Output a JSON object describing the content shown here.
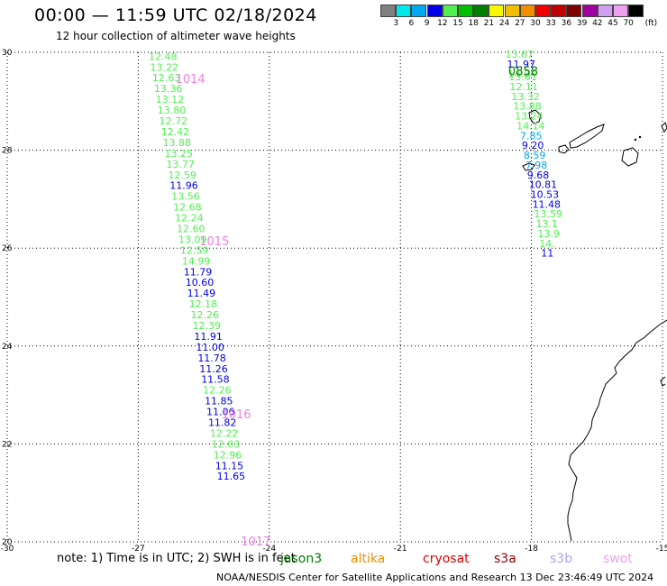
{
  "header": {
    "title": "00:00 — 11:59 UTC 02/18/2024",
    "subtitle": "12 hour collection of altimeter wave heights"
  },
  "colorbar": {
    "unit": "(ft)",
    "bins": [
      {
        "label": "3",
        "color": "#808080"
      },
      {
        "label": "6",
        "color": "#00e8e8"
      },
      {
        "label": "9",
        "color": "#00a8f0"
      },
      {
        "label": "12",
        "color": "#0000e8"
      },
      {
        "label": "15",
        "color": "#50f050"
      },
      {
        "label": "18",
        "color": "#00c000"
      },
      {
        "label": "21",
        "color": "#008000"
      },
      {
        "label": "24",
        "color": "#f8f800"
      },
      {
        "label": "27",
        "color": "#f0c000"
      },
      {
        "label": "30",
        "color": "#f09000"
      },
      {
        "label": "33",
        "color": "#f00000"
      },
      {
        "label": "36",
        "color": "#c00000"
      },
      {
        "label": "39",
        "color": "#800000"
      },
      {
        "label": "42",
        "color": "#a000a0"
      },
      {
        "label": "45",
        "color": "#d0a0f0"
      },
      {
        "label": "70",
        "color": "#f0a0f0"
      },
      {
        "label": "",
        "color": "#000000"
      }
    ]
  },
  "map": {
    "lon_range": [
      -30,
      -15
    ],
    "lat_range": [
      20,
      30
    ],
    "x_ticks": [
      -30,
      -27,
      -24,
      -21,
      -18,
      -15
    ],
    "y_ticks": [
      30,
      28,
      26,
      24,
      22,
      20
    ],
    "land_color": "#000000"
  },
  "track_west": [
    {
      "value": "12.48",
      "color": "#50f050",
      "lon": -26.76,
      "lat": 29.92
    },
    {
      "value": "13.22",
      "color": "#50f050",
      "lon": -26.73,
      "lat": 29.7
    },
    {
      "value": "12.63",
      "color": "#50f050",
      "lon": -26.68,
      "lat": 29.48
    },
    {
      "value": "13.36",
      "color": "#50f050",
      "lon": -26.64,
      "lat": 29.26
    },
    {
      "value": "13.12",
      "color": "#50f050",
      "lon": -26.6,
      "lat": 29.04
    },
    {
      "value": "13.80",
      "color": "#50f050",
      "lon": -26.56,
      "lat": 28.82
    },
    {
      "value": "12.72",
      "color": "#50f050",
      "lon": -26.52,
      "lat": 28.6
    },
    {
      "value": "12.42",
      "color": "#50f050",
      "lon": -26.48,
      "lat": 28.38
    },
    {
      "value": "13.88",
      "color": "#50f050",
      "lon": -26.44,
      "lat": 28.16
    },
    {
      "value": "13.25",
      "color": "#50f050",
      "lon": -26.4,
      "lat": 27.94
    },
    {
      "value": "13.77",
      "color": "#50f050",
      "lon": -26.36,
      "lat": 27.72
    },
    {
      "value": "12.59",
      "color": "#50f050",
      "lon": -26.32,
      "lat": 27.5
    },
    {
      "value": "11.96",
      "color": "#0000e8",
      "lon": -26.28,
      "lat": 27.28
    },
    {
      "value": "13.56",
      "color": "#50f050",
      "lon": -26.24,
      "lat": 27.06
    },
    {
      "value": "12.68",
      "color": "#50f050",
      "lon": -26.2,
      "lat": 26.84
    },
    {
      "value": "12.24",
      "color": "#50f050",
      "lon": -26.16,
      "lat": 26.62
    },
    {
      "value": "12.60",
      "color": "#50f050",
      "lon": -26.12,
      "lat": 26.4
    },
    {
      "value": "13.09",
      "color": "#50f050",
      "lon": -26.08,
      "lat": 26.18
    },
    {
      "value": "12.59",
      "color": "#50f050",
      "lon": -26.04,
      "lat": 25.96
    },
    {
      "value": "14.99",
      "color": "#50f050",
      "lon": -26.0,
      "lat": 25.74
    },
    {
      "value": "11.79",
      "color": "#0000e8",
      "lon": -25.96,
      "lat": 25.52
    },
    {
      "value": "10.60",
      "color": "#0000e8",
      "lon": -25.92,
      "lat": 25.3
    },
    {
      "value": "11.49",
      "color": "#0000e8",
      "lon": -25.88,
      "lat": 25.08
    },
    {
      "value": "12.18",
      "color": "#50f050",
      "lon": -25.84,
      "lat": 24.86
    },
    {
      "value": "12.26",
      "color": "#50f050",
      "lon": -25.8,
      "lat": 24.64
    },
    {
      "value": "12.39",
      "color": "#50f050",
      "lon": -25.76,
      "lat": 24.42
    },
    {
      "value": "11.91",
      "color": "#0000e8",
      "lon": -25.72,
      "lat": 24.2
    },
    {
      "value": "11.00",
      "color": "#0000e8",
      "lon": -25.68,
      "lat": 23.98
    },
    {
      "value": "11.78",
      "color": "#0000e8",
      "lon": -25.64,
      "lat": 23.76
    },
    {
      "value": "11.26",
      "color": "#0000e8",
      "lon": -25.6,
      "lat": 23.54
    },
    {
      "value": "11.58",
      "color": "#0000e8",
      "lon": -25.56,
      "lat": 23.32
    },
    {
      "value": "12.26",
      "color": "#50f050",
      "lon": -25.52,
      "lat": 23.1
    },
    {
      "value": "11.85",
      "color": "#0000e8",
      "lon": -25.48,
      "lat": 22.88
    },
    {
      "value": "11.06",
      "color": "#0000e8",
      "lon": -25.44,
      "lat": 22.66
    },
    {
      "value": "11.82",
      "color": "#0000e8",
      "lon": -25.4,
      "lat": 22.44
    },
    {
      "value": "12.22",
      "color": "#50f050",
      "lon": -25.36,
      "lat": 22.22
    },
    {
      "value": "12.03",
      "color": "#50f050",
      "lon": -25.32,
      "lat": 22.0
    },
    {
      "value": "12.96",
      "color": "#50f050",
      "lon": -25.28,
      "lat": 21.78
    },
    {
      "value": "11.15",
      "color": "#0000e8",
      "lon": -25.24,
      "lat": 21.56
    },
    {
      "value": "11.65",
      "color": "#0000e8",
      "lon": -25.2,
      "lat": 21.34
    }
  ],
  "track_east": [
    {
      "value": "13.67",
      "color": "#50f050",
      "lon": -18.6,
      "lat": 29.96
    },
    {
      "value": "11.97",
      "color": "#0000e8",
      "lon": -18.56,
      "lat": 29.76
    },
    {
      "value": "14.04",
      "color": "#50f050",
      "lon": -18.54,
      "lat": 29.56
    },
    {
      "value": "13.81",
      "color": "#50f050",
      "lon": -18.52,
      "lat": 29.5
    },
    {
      "value": "12.11",
      "color": "#50f050",
      "lon": -18.5,
      "lat": 29.3
    },
    {
      "value": "13.32",
      "color": "#50f050",
      "lon": -18.46,
      "lat": 29.1
    },
    {
      "value": "13.88",
      "color": "#50f050",
      "lon": -18.42,
      "lat": 28.9
    },
    {
      "value": "13.24",
      "color": "#50f050",
      "lon": -18.38,
      "lat": 28.7
    },
    {
      "value": "14.14",
      "color": "#50f050",
      "lon": -18.34,
      "lat": 28.5
    },
    {
      "value": "7.85",
      "color": "#00a8f0",
      "lon": -18.26,
      "lat": 28.3
    },
    {
      "value": "9.20",
      "color": "#0000e8",
      "lon": -18.22,
      "lat": 28.1
    },
    {
      "value": "8.59",
      "color": "#00a8f0",
      "lon": -18.18,
      "lat": 27.9
    },
    {
      "value": "7.98",
      "color": "#00a8f0",
      "lon": -18.14,
      "lat": 27.7
    },
    {
      "value": "9.68",
      "color": "#0000e8",
      "lon": -18.1,
      "lat": 27.5
    },
    {
      "value": "10.81",
      "color": "#0000e8",
      "lon": -18.06,
      "lat": 27.3
    },
    {
      "value": "10.53",
      "color": "#0000e8",
      "lon": -18.02,
      "lat": 27.1
    },
    {
      "value": "11.48",
      "color": "#0000e8",
      "lon": -17.98,
      "lat": 26.9
    },
    {
      "value": "13.59",
      "color": "#50f050",
      "lon": -17.94,
      "lat": 26.7
    },
    {
      "value": "13.1",
      "color": "#50f050",
      "lon": -17.9,
      "lat": 26.5
    },
    {
      "value": "13.9",
      "color": "#50f050",
      "lon": -17.86,
      "lat": 26.3
    },
    {
      "value": "14.",
      "color": "#50f050",
      "lon": -17.82,
      "lat": 26.1
    },
    {
      "value": "11",
      "color": "#0000e8",
      "lon": -17.78,
      "lat": 25.9
    }
  ],
  "pass_times": [
    {
      "label": "1014",
      "color": "#f080e0",
      "lon": -26.15,
      "lat": 29.45
    },
    {
      "label": "1015",
      "color": "#f080e0",
      "lon": -25.6,
      "lat": 26.13
    },
    {
      "label": "1016",
      "color": "#f080e0",
      "lon": -25.1,
      "lat": 22.6
    },
    {
      "label": "1017",
      "color": "#f080e0",
      "lon": -24.65,
      "lat": 20.0
    },
    {
      "label": "0858",
      "color": "#008000",
      "lon": -18.53,
      "lat": 29.6
    }
  ],
  "footer": {
    "note": "note: 1) Time is in UTC; 2) SWH is in feet",
    "legend": [
      {
        "label": "jason3",
        "color": "#008000"
      },
      {
        "label": "altika",
        "color": "#f09000"
      },
      {
        "label": "cryosat",
        "color": "#e00000"
      },
      {
        "label": "s3a",
        "color": "#a00000"
      },
      {
        "label": "s3b",
        "color": "#a8a8e8"
      },
      {
        "label": "swot",
        "color": "#f0a0f0"
      }
    ],
    "credit": "NOAA/NESDIS Center for Satellite Applications and Research    13 Dec 23:46:49 UTC 2024"
  }
}
